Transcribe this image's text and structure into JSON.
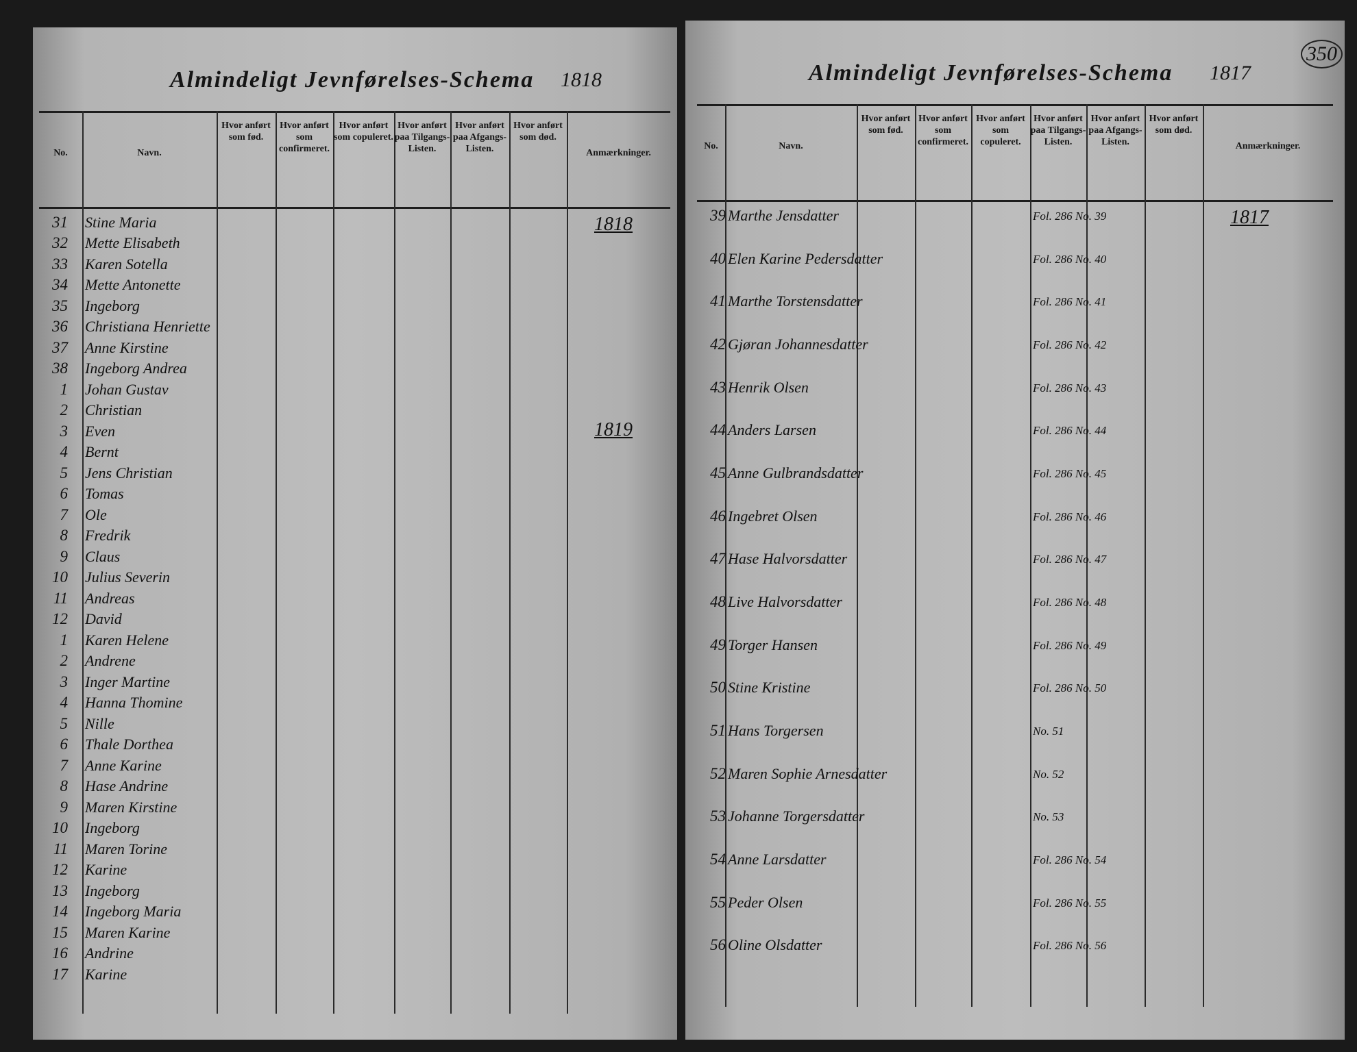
{
  "left_page": {
    "title": "Almindeligt Jevnførelses-Schema",
    "year": "1818",
    "columns": [
      "No.",
      "Navn.",
      "Hvor anført som fød.",
      "Hvor anført som confirmeret.",
      "Hvor anført som copuleret.",
      "Hvor anført paa Tilgangs-Listen.",
      "Hvor anført paa Afgangs-Listen.",
      "Hvor anført som død.",
      "Anmærkninger."
    ],
    "year_marks": [
      "1818",
      "1819"
    ],
    "rows": [
      {
        "no": "31",
        "name": "Stine Maria"
      },
      {
        "no": "32",
        "name": "Mette Elisabeth"
      },
      {
        "no": "33",
        "name": "Karen Sotella"
      },
      {
        "no": "34",
        "name": "Mette Antonette"
      },
      {
        "no": "35",
        "name": "Ingeborg"
      },
      {
        "no": "36",
        "name": "Christiana Henriette"
      },
      {
        "no": "37",
        "name": "Anne Kirstine"
      },
      {
        "no": "38",
        "name": "Ingeborg Andrea"
      },
      {
        "no": "1",
        "name": "Johan Gustav"
      },
      {
        "no": "2",
        "name": "Christian"
      },
      {
        "no": "3",
        "name": "Even"
      },
      {
        "no": "4",
        "name": "Bernt"
      },
      {
        "no": "5",
        "name": "Jens Christian"
      },
      {
        "no": "6",
        "name": "Tomas"
      },
      {
        "no": "7",
        "name": "Ole"
      },
      {
        "no": "8",
        "name": "Fredrik"
      },
      {
        "no": "9",
        "name": "Claus"
      },
      {
        "no": "10",
        "name": "Julius Severin"
      },
      {
        "no": "11",
        "name": "Andreas"
      },
      {
        "no": "12",
        "name": "David"
      },
      {
        "no": "1",
        "name": "Karen Helene"
      },
      {
        "no": "2",
        "name": "Andrene"
      },
      {
        "no": "3",
        "name": "Inger Martine"
      },
      {
        "no": "4",
        "name": "Hanna Thomine"
      },
      {
        "no": "5",
        "name": "Nille"
      },
      {
        "no": "6",
        "name": "Thale Dorthea"
      },
      {
        "no": "7",
        "name": "Anne Karine"
      },
      {
        "no": "8",
        "name": "Hase Andrine"
      },
      {
        "no": "9",
        "name": "Maren Kirstine"
      },
      {
        "no": "10",
        "name": "Ingeborg"
      },
      {
        "no": "11",
        "name": "Maren Torine"
      },
      {
        "no": "12",
        "name": "Karine"
      },
      {
        "no": "13",
        "name": "Ingeborg"
      },
      {
        "no": "14",
        "name": "Ingeborg Maria"
      },
      {
        "no": "15",
        "name": "Maren Karine"
      },
      {
        "no": "16",
        "name": "Andrine"
      },
      {
        "no": "17",
        "name": "Karine"
      }
    ]
  },
  "right_page": {
    "page_number": "350",
    "title": "Almindeligt Jevnførelses-Schema",
    "year": "1817",
    "columns": [
      "No.",
      "Navn.",
      "Hvor anført som fød.",
      "Hvor anført som confirmeret.",
      "Hvor anført som copuleret.",
      "Hvor anført paa Tilgangs-Listen.",
      "Hvor anført paa Afgangs-Listen.",
      "Hvor anført som død.",
      "Anmærkninger."
    ],
    "year_marks": [
      "1817"
    ],
    "rows": [
      {
        "no": "39",
        "name": "Marthe Jensdatter",
        "ref": "Fol. 286 No. 39"
      },
      {
        "no": "40",
        "name": "Elen Karine Pedersdatter",
        "ref": "Fol. 286 No. 40"
      },
      {
        "no": "41",
        "name": "Marthe Torstensdatter",
        "ref": "Fol. 286 No. 41"
      },
      {
        "no": "42",
        "name": "Gjøran Johannesdatter",
        "ref": "Fol. 286 No. 42"
      },
      {
        "no": "43",
        "name": "Henrik Olsen",
        "ref": "Fol. 286 No. 43"
      },
      {
        "no": "44",
        "name": "Anders Larsen",
        "ref": "Fol. 286 No. 44"
      },
      {
        "no": "45",
        "name": "Anne Gulbrandsdatter",
        "ref": "Fol. 286 No. 45"
      },
      {
        "no": "46",
        "name": "Ingebret Olsen",
        "ref": "Fol. 286 No. 46"
      },
      {
        "no": "47",
        "name": "Hase Halvorsdatter",
        "ref": "Fol. 286 No. 47"
      },
      {
        "no": "48",
        "name": "Live Halvorsdatter",
        "ref": "Fol. 286 No. 48"
      },
      {
        "no": "49",
        "name": "Torger Hansen",
        "ref": "Fol. 286 No. 49"
      },
      {
        "no": "50",
        "name": "Stine Kristine",
        "ref": "Fol. 286 No. 50"
      },
      {
        "no": "51",
        "name": "Hans Torgersen",
        "ref": "No. 51"
      },
      {
        "no": "52",
        "name": "Maren Sophie Arnesdatter",
        "ref": "No. 52"
      },
      {
        "no": "53",
        "name": "Johanne Torgersdatter",
        "ref": "No. 53"
      },
      {
        "no": "54",
        "name": "Anne Larsdatter",
        "ref": "Fol. 286 No. 54"
      },
      {
        "no": "55",
        "name": "Peder Olsen",
        "ref": "Fol. 286 No. 55"
      },
      {
        "no": "56",
        "name": "Oline Olsdatter",
        "ref": "Fol. 286 No. 56"
      }
    ]
  }
}
